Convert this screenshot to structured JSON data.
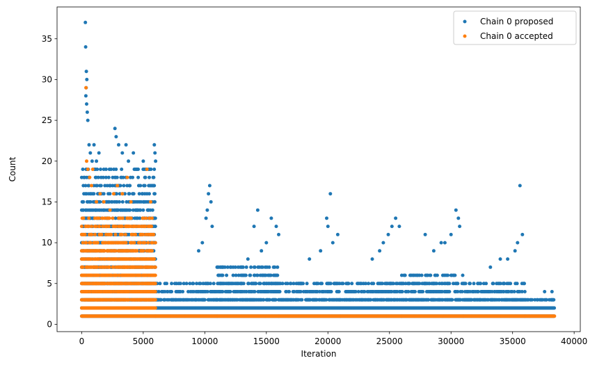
{
  "chart_data": {
    "type": "scatter",
    "title": "",
    "xlabel": "Iteration",
    "ylabel": "Count",
    "xlim": [
      -2000,
      40500
    ],
    "ylim": [
      -0.9,
      38.9
    ],
    "xticks": [
      0,
      5000,
      10000,
      15000,
      20000,
      25000,
      30000,
      35000,
      40000
    ],
    "xtick_labels": [
      "0",
      "5000",
      "10000",
      "15000",
      "20000",
      "25000",
      "30000",
      "35000",
      "40000"
    ],
    "yticks": [
      0,
      5,
      10,
      15,
      20,
      25,
      30,
      35
    ],
    "ytick_labels": [
      "0",
      "5",
      "10",
      "15",
      "20",
      "25",
      "30",
      "35"
    ],
    "grid": false,
    "legend_position": "top-right",
    "series": [
      {
        "name": "Chain 0 proposed",
        "color": "#1f77b4",
        "x": [
          300,
          320,
          380,
          420,
          360,
          340,
          400,
          450,
          500,
          600,
          700,
          850,
          1000,
          1200,
          1400,
          1800,
          2200,
          2700,
          2800,
          3000,
          3300,
          3600,
          3800,
          4200,
          4500,
          5000,
          5500,
          5900,
          5950,
          6000,
          10400,
          10300,
          10500,
          10200,
          10100,
          10600,
          9800,
          9500,
          14300,
          14000,
          15400,
          15800,
          16000,
          15000,
          14600,
          13500,
          19900,
          20200,
          20000,
          20800,
          20400,
          19400,
          18500,
          24900,
          25500,
          25800,
          25200,
          24500,
          24200,
          23600,
          27900,
          29500,
          30400,
          30600,
          30700,
          30000,
          29200,
          28600,
          35600,
          35800,
          35400,
          35200,
          34600,
          34000,
          33200,
          37600,
          38200
        ],
        "y": [
          37,
          34,
          31,
          30,
          29,
          28,
          27,
          26,
          25,
          22,
          21,
          20,
          22,
          20,
          21,
          19,
          18,
          24,
          23,
          22,
          21,
          22,
          20,
          21,
          19,
          20,
          19,
          22,
          21,
          20,
          17,
          16,
          15,
          14,
          13,
          12,
          10,
          9,
          14,
          12,
          13,
          12,
          11,
          10,
          9,
          8,
          13,
          16,
          12,
          11,
          10,
          9,
          8,
          11,
          13,
          12,
          12,
          10,
          9,
          8,
          11,
          10,
          14,
          13,
          12,
          11,
          10,
          9,
          17,
          11,
          10,
          9,
          8,
          8,
          7,
          4,
          4
        ],
        "dense_bands": [
          {
            "x": [
              0,
              6000
            ],
            "y_min": 1,
            "y_max": 19
          },
          {
            "x": [
              6000,
              11000
            ],
            "y_min": 1,
            "y_max": 5
          },
          {
            "x": [
              11000,
              16000
            ],
            "y_min": 1,
            "y_max": 7
          },
          {
            "x": [
              16000,
              21000
            ],
            "y_min": 1,
            "y_max": 5
          },
          {
            "x": [
              21000,
              26000
            ],
            "y_min": 1,
            "y_max": 5
          },
          {
            "x": [
              26000,
              31000
            ],
            "y_min": 1,
            "y_max": 6
          },
          {
            "x": [
              31000,
              36000
            ],
            "y_min": 1,
            "y_max": 5
          },
          {
            "x": [
              36000,
              38400
            ],
            "y_min": 1,
            "y_max": 3
          }
        ]
      },
      {
        "name": "Chain 0 accepted",
        "color": "#ff7f0e",
        "x": [
          350,
          400,
          500,
          650,
          800,
          900,
          1200,
          1500,
          1800,
          2300,
          2600,
          2900,
          3300,
          3700,
          4000,
          5300,
          5600
        ],
        "y": [
          29,
          20,
          19,
          18,
          17,
          19,
          15,
          16,
          15,
          14,
          16,
          17,
          16,
          18,
          15,
          19,
          15
        ],
        "dense_bands": [
          {
            "x": [
              0,
              6000
            ],
            "y_min": 1,
            "y_max": 13
          },
          {
            "x": [
              6000,
              38400
            ],
            "y_min": 1,
            "y_max": 1
          }
        ]
      }
    ]
  }
}
